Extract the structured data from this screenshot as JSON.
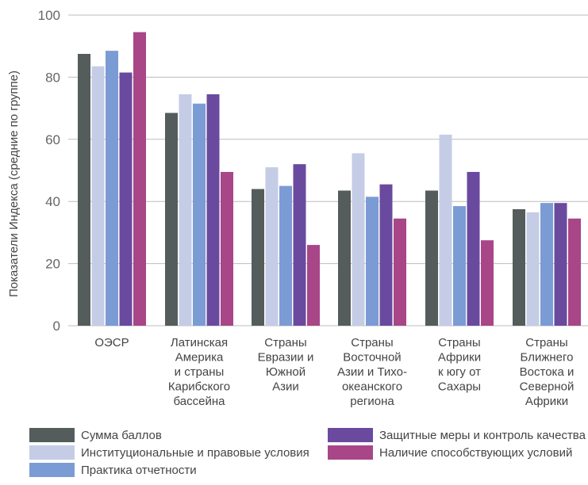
{
  "chart_data": {
    "type": "bar",
    "ylabel": "Показатели Индекса (средние по группе)",
    "ylim": [
      0,
      100
    ],
    "yticks": [
      0,
      20,
      40,
      60,
      80,
      100
    ],
    "grid": true,
    "legend_position": "bottom",
    "categories": [
      [
        "ОЭСР"
      ],
      [
        "Латинская",
        "Америка",
        "и страны",
        "Карибского",
        "бассейна"
      ],
      [
        "Страны",
        "Евразии и",
        "Южной",
        "Азии"
      ],
      [
        "Страны",
        "Восточной",
        "Азии и Тихо-",
        "океанского",
        "региона"
      ],
      [
        "Страны",
        "Африки",
        "к югу от",
        "Сахары"
      ],
      [
        "Страны",
        "Ближнего",
        "Востока и",
        "Северной",
        "Африки"
      ]
    ],
    "series": [
      {
        "name": "Сумма баллов",
        "color": "#555c5c",
        "values": [
          87.5,
          68.5,
          44,
          43.5,
          43.5,
          37.5
        ]
      },
      {
        "name": "Институциональные и правовые условия",
        "color": "#c5cce6",
        "values": [
          83.5,
          74.5,
          51,
          55.5,
          61.5,
          36.5
        ]
      },
      {
        "name": "Практика отчетности",
        "color": "#7b9bd4",
        "values": [
          88.5,
          71.5,
          45,
          41.5,
          38.5,
          39.5
        ]
      },
      {
        "name": "Защитные меры и контроль качества",
        "color": "#6a4a9e",
        "values": [
          81.5,
          74.5,
          52,
          45.5,
          49.5,
          39.5
        ]
      },
      {
        "name": "Наличие способствующих условий",
        "color": "#a84688",
        "values": [
          94.5,
          49.5,
          26,
          34.5,
          27.5,
          34.5
        ]
      }
    ]
  }
}
